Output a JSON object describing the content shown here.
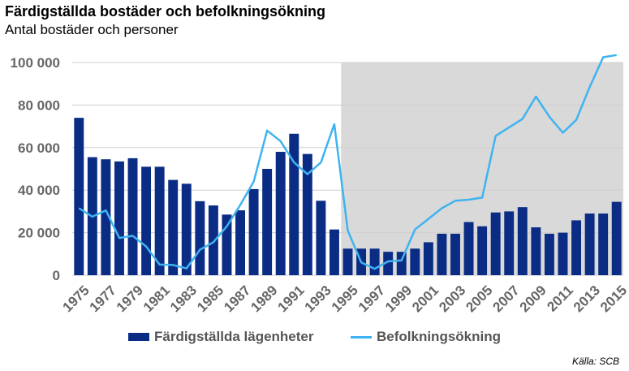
{
  "title": "Färdigställda bostäder och befolkningsökning",
  "subtitle": "Antal bostäder och personer",
  "source": "Källa: SCB",
  "colors": {
    "bars": "#0b2c84",
    "line": "#3fb3f0",
    "shade": "#d9d9d9",
    "grid": "#cfcfcf",
    "tick_text": "#666666"
  },
  "chart_data": {
    "type": "bar",
    "title": "Färdigställda bostäder och befolkningsökning",
    "subtitle": "Antal bostäder och personer",
    "categories": [
      "1975",
      "1976",
      "1977",
      "1978",
      "1979",
      "1980",
      "1981",
      "1982",
      "1983",
      "1984",
      "1985",
      "1986",
      "1987",
      "1988",
      "1989",
      "1990",
      "1991",
      "1992",
      "1993",
      "1994",
      "1995",
      "1996",
      "1997",
      "1998",
      "1999",
      "2000",
      "2001",
      "2002",
      "2003",
      "2004",
      "2005",
      "2006",
      "2007",
      "2008",
      "2009",
      "2010",
      "2011",
      "2012",
      "2013",
      "2014",
      "2015"
    ],
    "x_tick_labels": [
      "1975",
      "1977",
      "1979",
      "1981",
      "1983",
      "1985",
      "1987",
      "1989",
      "1991",
      "1993",
      "1995",
      "1997",
      "1999",
      "2001",
      "2003",
      "2005",
      "2007",
      "2009",
      "2011",
      "2013",
      "2015"
    ],
    "y_tick_labels": [
      "0",
      "20 000",
      "40 000",
      "60 000",
      "80 000",
      "100 000"
    ],
    "ylim": [
      0,
      100000
    ],
    "y_ticks": [
      0,
      20000,
      40000,
      60000,
      80000,
      100000
    ],
    "grid": true,
    "shaded_from": "1995",
    "legend_position": "bottom",
    "series": [
      {
        "name": "Färdigställda lägenheter",
        "type": "bar",
        "values": [
          74000,
          55500,
          54500,
          53500,
          55000,
          51000,
          51000,
          44800,
          43000,
          34800,
          32800,
          28500,
          30500,
          40500,
          50000,
          58000,
          66500,
          57000,
          35000,
          21500,
          12500,
          12500,
          12500,
          11000,
          11000,
          12500,
          15500,
          19500,
          19500,
          25000,
          23000,
          29500,
          30000,
          32000,
          22500,
          19500,
          20000,
          25800,
          29000,
          29000,
          34500
        ]
      },
      {
        "name": "Befolkningsökning",
        "type": "line",
        "values": [
          31500,
          27500,
          30500,
          17500,
          18500,
          13500,
          5000,
          4800,
          3200,
          12000,
          15500,
          23000,
          33000,
          44000,
          68000,
          63000,
          53000,
          47500,
          53000,
          71000,
          21000,
          6000,
          3000,
          6500,
          7000,
          21500,
          26500,
          31500,
          35000,
          35500,
          36500,
          65500,
          69500,
          73500,
          84000,
          74500,
          67000,
          73000,
          88500,
          102500,
          103500
        ]
      }
    ]
  },
  "legend": {
    "bar_label": "Färdigställda lägenheter",
    "line_label": "Befolkningsökning"
  }
}
